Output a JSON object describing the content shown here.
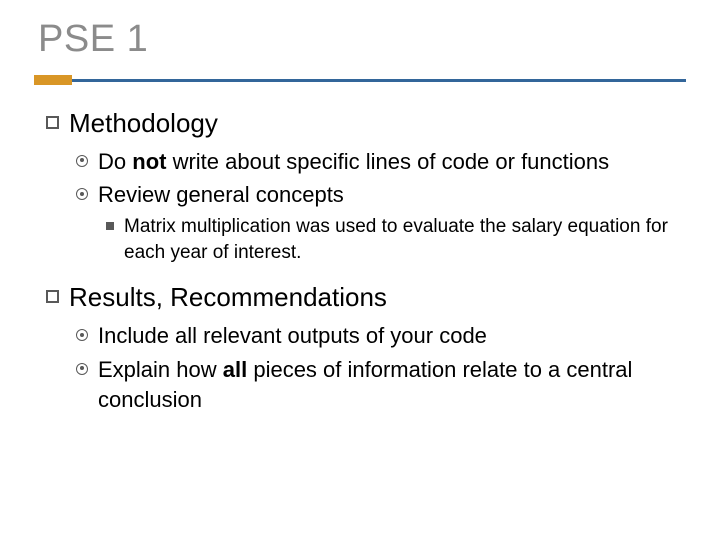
{
  "colors": {
    "title_color": "#8b8b8b",
    "accent_short": "#d99626",
    "accent_long": "#33669a",
    "bullet_color": "#595959",
    "background": "#ffffff",
    "text": "#000000"
  },
  "fontsize": {
    "title": 38,
    "lv1": 26,
    "lv2": 22,
    "lv3": 19
  },
  "title": "PSE 1",
  "s1": {
    "label": "Methodology"
  },
  "s1a": {
    "pre": "Do ",
    "bold": "not",
    "post": " write about specific lines of code or functions"
  },
  "s1b": {
    "text": "Review general concepts"
  },
  "s1b1": {
    "text": "Matrix multiplication was used to evaluate the salary equation for each year of interest."
  },
  "s2": {
    "label": "Results, Recommendations"
  },
  "s2a": {
    "text": "Include all relevant outputs of your code"
  },
  "s2b": {
    "pre": "Explain how ",
    "bold": "all",
    "post": " pieces of information relate to a central conclusion"
  }
}
